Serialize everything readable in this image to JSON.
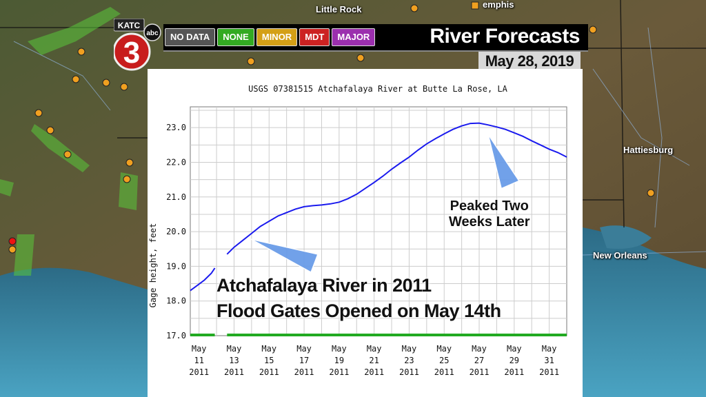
{
  "station_title": "USGS 07381515 Atchafalaya River at Butte La Rose, LA",
  "banner": {
    "title": "River Forecasts",
    "date": "May 28, 2019",
    "logo_letters": "KATC",
    "logo_number": "3",
    "logo_network": "abc",
    "legend": [
      {
        "label": "NO DATA",
        "color": "#555555"
      },
      {
        "label": "NONE",
        "color": "#33aa22"
      },
      {
        "label": "MINOR",
        "color": "#d4a017"
      },
      {
        "label": "MDT",
        "color": "#cc2222"
      },
      {
        "label": "MAJOR",
        "color": "#9b2fae"
      }
    ]
  },
  "map_labels": {
    "little_rock": "Little Rock",
    "memphis": "emphis",
    "hattiesburg": "Hattiesburg",
    "new_orleans": "New Orleans"
  },
  "annotations": {
    "peak": [
      "Peaked Two",
      "Weeks Later"
    ],
    "caption": [
      "Atchafalaya River in 2011",
      "Flood Gates Opened on May 14th"
    ]
  },
  "chart_data": {
    "type": "line",
    "title": "USGS 07381515 Atchafalaya River at Butte La Rose, LA",
    "xlabel": "",
    "ylabel": "Gage height, feet",
    "ylim": [
      17.0,
      23.6
    ],
    "xlim": [
      10.5,
      32.0
    ],
    "yticks": [
      "17.0",
      "18.0",
      "19.0",
      "20.0",
      "21.0",
      "22.0",
      "23.0"
    ],
    "xticks": [
      {
        "month": "May",
        "day": "11",
        "year": "2011"
      },
      {
        "month": "May",
        "day": "13",
        "year": "2011"
      },
      {
        "month": "May",
        "day": "15",
        "year": "2011"
      },
      {
        "month": "May",
        "day": "17",
        "year": "2011"
      },
      {
        "month": "May",
        "day": "19",
        "year": "2011"
      },
      {
        "month": "May",
        "day": "21",
        "year": "2011"
      },
      {
        "month": "May",
        "day": "23",
        "year": "2011"
      },
      {
        "month": "May",
        "day": "25",
        "year": "2011"
      },
      {
        "month": "May",
        "day": "27",
        "year": "2011"
      },
      {
        "month": "May",
        "day": "29",
        "year": "2011"
      },
      {
        "month": "May",
        "day": "31",
        "year": "2011"
      }
    ],
    "series": [
      {
        "color": "#1a1aee",
        "segments": [
          [
            [
              10.5,
              18.3
            ],
            [
              10.9,
              18.45
            ],
            [
              11.3,
              18.6
            ],
            [
              11.7,
              18.8
            ],
            [
              11.9,
              18.95
            ]
          ],
          [
            [
              12.6,
              19.35
            ],
            [
              13.0,
              19.55
            ],
            [
              13.5,
              19.75
            ],
            [
              14.0,
              19.95
            ],
            [
              14.5,
              20.15
            ],
            [
              15.0,
              20.3
            ],
            [
              15.5,
              20.45
            ],
            [
              16.0,
              20.55
            ],
            [
              16.5,
              20.65
            ],
            [
              17.0,
              20.72
            ],
            [
              17.5,
              20.75
            ],
            [
              18.0,
              20.77
            ],
            [
              18.5,
              20.8
            ],
            [
              19.0,
              20.85
            ],
            [
              19.5,
              20.95
            ],
            [
              20.0,
              21.08
            ],
            [
              20.5,
              21.25
            ],
            [
              21.0,
              21.42
            ],
            [
              21.5,
              21.6
            ],
            [
              22.0,
              21.8
            ],
            [
              22.5,
              21.98
            ],
            [
              23.0,
              22.15
            ],
            [
              23.5,
              22.35
            ],
            [
              24.0,
              22.53
            ],
            [
              24.5,
              22.68
            ],
            [
              25.0,
              22.82
            ],
            [
              25.5,
              22.95
            ],
            [
              26.0,
              23.05
            ],
            [
              26.5,
              23.12
            ],
            [
              27.0,
              23.13
            ],
            [
              27.5,
              23.08
            ],
            [
              28.0,
              23.02
            ],
            [
              28.5,
              22.95
            ],
            [
              29.0,
              22.85
            ],
            [
              29.5,
              22.75
            ],
            [
              30.0,
              22.62
            ],
            [
              30.5,
              22.5
            ],
            [
              31.0,
              22.38
            ],
            [
              31.5,
              22.28
            ],
            [
              32.0,
              22.15
            ]
          ]
        ]
      }
    ],
    "period_bar": {
      "color": "#22aa22",
      "gap": [
        11.9,
        12.6
      ]
    }
  }
}
